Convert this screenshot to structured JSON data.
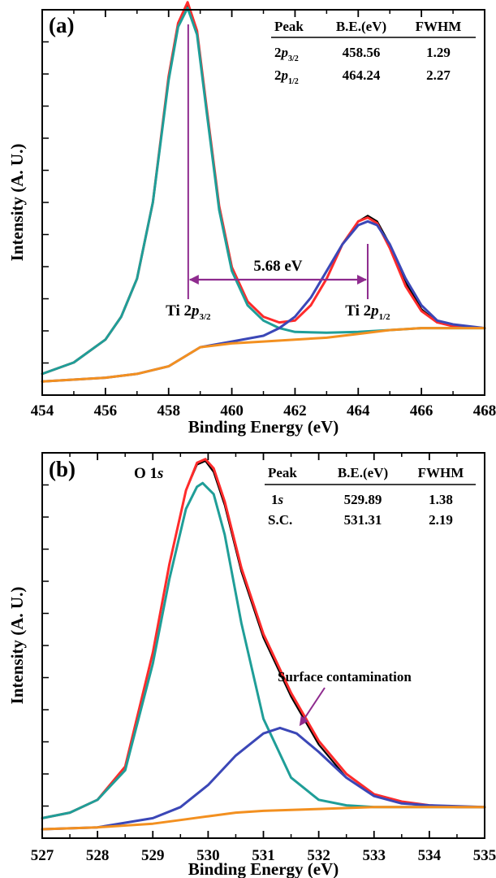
{
  "chart_data": [
    {
      "type": "line",
      "panel_label": "(a)",
      "xlabel": "Binding Energy (eV)",
      "ylabel": "Intensity (A. U.)",
      "xlim": [
        454,
        468
      ],
      "ylim": [
        0,
        100
      ],
      "xticks": [
        454,
        456,
        458,
        460,
        462,
        464,
        466,
        468
      ],
      "xtick_labels": [
        "454",
        "456",
        "458",
        "460",
        "462",
        "464",
        "466",
        "468"
      ],
      "grid": false,
      "table": {
        "headers": [
          "Peak",
          "B.E.(eV)",
          "FWHM"
        ],
        "rows": [
          {
            "base": "2",
            "italic": "p",
            "sub": "3/2",
            "be": "458.56",
            "fwhm": "1.29"
          },
          {
            "base": "2",
            "italic": "p",
            "sub": "1/2",
            "be": "464.24",
            "fwhm": "2.27"
          }
        ]
      },
      "annotations": {
        "separation": "5.68 eV",
        "separation_range": [
          458.62,
          464.3
        ],
        "peak1": {
          "text": "Ti 2",
          "italic": "p",
          "sub": "3/2",
          "x": 458.62
        },
        "peak2": {
          "text": "Ti 2",
          "italic": "p",
          "sub": "1/2",
          "x": 464.3
        }
      },
      "series": [
        {
          "color": "#000000",
          "role": "experimental",
          "x": [
            454,
            455,
            456,
            456.5,
            457,
            457.5,
            458,
            458.3,
            458.6,
            458.9,
            459.2,
            459.6,
            460,
            460.5,
            461,
            461.5,
            462,
            462.5,
            463,
            463.5,
            464,
            464.3,
            464.6,
            465,
            465.5,
            466,
            466.5,
            467,
            468
          ],
          "y": [
            3,
            6,
            12,
            18,
            28,
            48,
            80,
            94,
            100,
            93,
            73,
            47,
            31,
            22,
            18,
            16.5,
            17,
            21,
            28,
            37,
            43,
            44.5,
            43,
            37,
            27,
            20,
            16.5,
            15.5,
            15
          ]
        },
        {
          "color": "#ff2b2b",
          "role": "envelope",
          "x": [
            454,
            455,
            456,
            456.5,
            457,
            457.5,
            458,
            458.3,
            458.6,
            458.9,
            459.2,
            459.6,
            460,
            460.5,
            461,
            461.5,
            462,
            462.5,
            463,
            463.5,
            464,
            464.3,
            464.6,
            465,
            465.5,
            466,
            466.5,
            467,
            468
          ],
          "y": [
            3,
            6,
            12,
            18,
            28,
            48,
            81,
            95,
            100.5,
            93,
            73,
            47,
            31,
            22,
            18,
            16.5,
            17,
            21,
            28,
            37,
            43,
            44,
            42.5,
            36,
            26,
            19.5,
            16.5,
            15.5,
            15
          ]
        },
        {
          "color": "#1f9e98",
          "role": "Ti 2p3/2 component",
          "x": [
            454,
            455,
            456,
            456.5,
            457,
            457.5,
            458,
            458.3,
            458.6,
            458.9,
            459.2,
            459.6,
            460,
            460.5,
            461,
            461.5,
            462,
            463,
            464,
            465,
            466,
            467,
            468
          ],
          "y": [
            3,
            6,
            12,
            18,
            28,
            48,
            80,
            94,
            99,
            92,
            72,
            46,
            30,
            21,
            17,
            15,
            14,
            13.8,
            14,
            14.5,
            15,
            15,
            15
          ]
        },
        {
          "color": "#3b47b7",
          "role": "Ti 2p1/2 component",
          "x": [
            454,
            456,
            457,
            458,
            458.6,
            459,
            460,
            461,
            461.5,
            462,
            462.5,
            463,
            463.5,
            464,
            464.3,
            464.6,
            465,
            465.5,
            466,
            466.5,
            467,
            468
          ],
          "y": [
            1,
            2,
            3,
            5,
            8,
            10,
            11.5,
            13,
            15,
            18,
            23,
            30,
            37,
            42,
            43,
            42,
            37,
            28,
            21,
            17,
            16,
            15
          ]
        },
        {
          "color": "#f39020",
          "role": "background",
          "x": [
            454,
            456,
            457,
            458,
            458.6,
            459,
            460,
            461,
            462,
            463,
            464,
            465,
            466,
            467,
            468
          ],
          "y": [
            1,
            2,
            3,
            5,
            8,
            10,
            11,
            11.5,
            12,
            12.5,
            13.5,
            14.5,
            15,
            15,
            15
          ]
        }
      ]
    },
    {
      "type": "line",
      "panel_label": "(b)",
      "xlabel": "Binding Energy (eV)",
      "ylabel": "Intensity (A. U.)",
      "xlim": [
        527,
        535
      ],
      "ylim": [
        0,
        100
      ],
      "xticks": [
        527,
        528,
        529,
        530,
        531,
        532,
        533,
        534,
        535
      ],
      "xtick_labels": [
        "527",
        "528",
        "529",
        "530",
        "531",
        "532",
        "533",
        "534",
        "535"
      ],
      "grid": false,
      "table": {
        "headers": [
          "Peak",
          "B.E.(eV)",
          "FWHM"
        ],
        "rows": [
          {
            "base": "1",
            "italic": "s",
            "sub": "",
            "be": "529.89",
            "fwhm": "1.38"
          },
          {
            "base": "S.C.",
            "italic": "",
            "sub": "",
            "be": "531.31",
            "fwhm": "2.19"
          }
        ]
      },
      "annotations": {
        "title": {
          "text": "O 1",
          "italic": "s"
        },
        "surface_label": "Surface contamination",
        "surface_arrow_target": {
          "x": 531.65,
          "y": 28
        }
      },
      "series": [
        {
          "color": "#000000",
          "role": "experimental",
          "x": [
            527,
            527.5,
            528,
            528.5,
            529,
            529.3,
            529.6,
            529.8,
            529.95,
            530.1,
            530.3,
            530.6,
            531,
            531.5,
            532,
            532.5,
            533,
            533.5,
            534,
            534.5,
            535
          ],
          "y": [
            3,
            4.5,
            8,
            17,
            48,
            72,
            92,
            99,
            100,
            97,
            88,
            70,
            52,
            36,
            23,
            14,
            9,
            7,
            6.5,
            6,
            6
          ]
        },
        {
          "color": "#ff2b2b",
          "role": "envelope",
          "x": [
            527,
            527.5,
            528,
            528.5,
            529,
            529.3,
            529.6,
            529.8,
            529.95,
            530.1,
            530.3,
            530.6,
            531,
            531.5,
            532,
            532.5,
            533,
            533.5,
            534,
            534.5,
            535
          ],
          "y": [
            3,
            4.5,
            8,
            17,
            48,
            72,
            92,
            99.5,
            100.5,
            98,
            89,
            71,
            53,
            37,
            24,
            15,
            9.5,
            7.5,
            6.5,
            6,
            6
          ]
        },
        {
          "color": "#1f9e98",
          "role": "O 1s component",
          "x": [
            527,
            527.5,
            528,
            528.5,
            529,
            529.3,
            529.6,
            529.8,
            529.9,
            530.1,
            530.3,
            530.6,
            531,
            531.5,
            532,
            532.5,
            533,
            533.5,
            534,
            535
          ],
          "y": [
            3,
            4.5,
            8,
            16,
            45,
            68,
            87,
            93,
            94,
            91,
            80,
            56,
            30,
            14,
            8,
            6.5,
            6,
            6,
            6,
            6
          ]
        },
        {
          "color": "#3b47b7",
          "role": "S.C. component",
          "x": [
            527,
            528,
            529,
            529.5,
            530,
            530.5,
            531,
            531.3,
            531.6,
            532,
            532.5,
            533,
            533.5,
            534,
            535
          ],
          "y": [
            0,
            0.5,
            3,
            6,
            12,
            20,
            26,
            27.5,
            26,
            21,
            14,
            9,
            7,
            6.5,
            6
          ]
        },
        {
          "color": "#f39020",
          "role": "background",
          "x": [
            527,
            528,
            529,
            529.5,
            530,
            530.5,
            531,
            532,
            533,
            534,
            535
          ],
          "y": [
            0,
            0.5,
            1.5,
            2.5,
            3.5,
            4.5,
            5,
            5.5,
            6,
            6,
            6
          ]
        }
      ]
    }
  ]
}
